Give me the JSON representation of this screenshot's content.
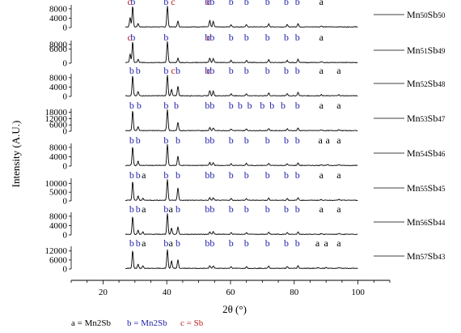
{
  "chart_data": {
    "type": "line",
    "xlabel": "2θ (°)",
    "ylabel": "Intensity (A.U.)",
    "xlim": [
      10,
      110
    ],
    "x_ticks": [
      "20",
      "40",
      "60",
      "80",
      "100"
    ],
    "grid": false,
    "legend": [
      {
        "symbol": "a",
        "text": "a = Mn2Sb",
        "color": "#000000"
      },
      {
        "symbol": "b",
        "text": "b = Mn2Sb",
        "color": "#1f1fa8"
      },
      {
        "symbol": "c",
        "text": "c = Sb",
        "color": "#c0201f"
      }
    ],
    "series": [
      {
        "name": "Mn50Sb50",
        "y_ticks": [
          "8000",
          "4000",
          "0"
        ],
        "ymax": 9000,
        "peaks": [
          [
            28.5,
            0.45
          ],
          [
            29.3,
            1.0
          ],
          [
            31.0,
            0.16
          ],
          [
            40.2,
            1.0
          ],
          [
            43.5,
            0.28
          ],
          [
            53.5,
            0.3
          ],
          [
            54.6,
            0.26
          ],
          [
            60.2,
            0.1
          ],
          [
            65.0,
            0.1
          ],
          [
            72.0,
            0.14
          ],
          [
            77.8,
            0.1
          ],
          [
            81.2,
            0.16
          ],
          [
            88.5,
            0.05
          ]
        ],
        "labels": [
          {
            "x": 28.3,
            "t": "c"
          },
          {
            "x": 29.4,
            "t": "b"
          },
          {
            "x": 39.8,
            "t": "b"
          },
          {
            "x": 42.0,
            "t": "c"
          },
          {
            "x": 53.2,
            "t": "c"
          },
          {
            "x": 53.5,
            "t": "bb"
          },
          {
            "x": 60.2,
            "t": "b"
          },
          {
            "x": 65.0,
            "t": "b"
          },
          {
            "x": 71.6,
            "t": "b"
          },
          {
            "x": 77.5,
            "t": "b"
          },
          {
            "x": 81.0,
            "t": "b"
          },
          {
            "x": 88.5,
            "t": "a"
          }
        ]
      },
      {
        "name": "Mn51Sb49",
        "y_ticks": [
          "8000",
          "6000",
          "0"
        ],
        "ymax": 9000,
        "peaks": [
          [
            28.5,
            0.4
          ],
          [
            29.3,
            1.0
          ],
          [
            31.0,
            0.15
          ],
          [
            40.2,
            1.0
          ],
          [
            43.5,
            0.2
          ],
          [
            53.5,
            0.22
          ],
          [
            54.6,
            0.2
          ],
          [
            60.2,
            0.1
          ],
          [
            65.0,
            0.1
          ],
          [
            72.0,
            0.14
          ],
          [
            77.8,
            0.1
          ],
          [
            81.2,
            0.16
          ],
          [
            88.5,
            0.05
          ]
        ],
        "labels": [
          {
            "x": 28.3,
            "t": "c"
          },
          {
            "x": 29.4,
            "t": "b"
          },
          {
            "x": 39.8,
            "t": "b"
          },
          {
            "x": 53.2,
            "t": "c"
          },
          {
            "x": 53.5,
            "t": "bb"
          },
          {
            "x": 60.2,
            "t": "b"
          },
          {
            "x": 65.0,
            "t": "b"
          },
          {
            "x": 71.6,
            "t": "b"
          },
          {
            "x": 77.5,
            "t": "b"
          },
          {
            "x": 81.0,
            "t": "b"
          },
          {
            "x": 88.5,
            "t": "a"
          }
        ]
      },
      {
        "name": "Mn52Sb48",
        "y_ticks": [
          "8000",
          "4000",
          "0"
        ],
        "ymax": 9000,
        "peaks": [
          [
            29.3,
            0.95
          ],
          [
            31.0,
            0.2
          ],
          [
            40.2,
            1.0
          ],
          [
            41.5,
            0.3
          ],
          [
            43.5,
            0.45
          ],
          [
            53.5,
            0.25
          ],
          [
            54.6,
            0.22
          ],
          [
            60.2,
            0.1
          ],
          [
            65.0,
            0.1
          ],
          [
            72.0,
            0.14
          ],
          [
            77.8,
            0.1
          ],
          [
            81.2,
            0.16
          ],
          [
            88.5,
            0.05
          ],
          [
            94.0,
            0.05
          ]
        ],
        "labels": [
          {
            "x": 29.0,
            "t": "b"
          },
          {
            "x": 31.0,
            "t": "b"
          },
          {
            "x": 39.8,
            "t": "b"
          },
          {
            "x": 42.0,
            "t": "c"
          },
          {
            "x": 43.5,
            "t": "b"
          },
          {
            "x": 53.2,
            "t": "c"
          },
          {
            "x": 53.5,
            "t": "bb"
          },
          {
            "x": 60.2,
            "t": "b"
          },
          {
            "x": 65.0,
            "t": "b"
          },
          {
            "x": 71.6,
            "t": "b"
          },
          {
            "x": 77.5,
            "t": "b"
          },
          {
            "x": 81.0,
            "t": "b"
          },
          {
            "x": 88.5,
            "t": "a"
          },
          {
            "x": 94.0,
            "t": "a"
          }
        ]
      },
      {
        "name": "Mn53Sb47",
        "y_ticks": [
          "18000",
          "12000",
          "6000",
          "0"
        ],
        "ymax": 20000,
        "peaks": [
          [
            29.3,
            0.95
          ],
          [
            31.0,
            0.2
          ],
          [
            40.2,
            1.0
          ],
          [
            43.5,
            0.4
          ],
          [
            53.5,
            0.15
          ],
          [
            54.6,
            0.13
          ],
          [
            60.2,
            0.08
          ],
          [
            65.0,
            0.08
          ],
          [
            72.0,
            0.1
          ],
          [
            77.8,
            0.08
          ],
          [
            81.2,
            0.12
          ],
          [
            88.5,
            0.04
          ],
          [
            94.0,
            0.04
          ]
        ],
        "labels": [
          {
            "x": 29.0,
            "t": "b"
          },
          {
            "x": 31.3,
            "t": "b"
          },
          {
            "x": 39.8,
            "t": "b"
          },
          {
            "x": 43.0,
            "t": "b"
          },
          {
            "x": 53.5,
            "t": "bb"
          },
          {
            "x": 60.2,
            "t": "b"
          },
          {
            "x": 63.0,
            "t": "b"
          },
          {
            "x": 66.0,
            "t": "b"
          },
          {
            "x": 70.0,
            "t": "b"
          },
          {
            "x": 73.0,
            "t": "b"
          },
          {
            "x": 76.5,
            "t": "b"
          },
          {
            "x": 81.0,
            "t": "b"
          },
          {
            "x": 88.5,
            "t": "a"
          },
          {
            "x": 94.0,
            "t": "a"
          }
        ]
      },
      {
        "name": "Mn54Sb46",
        "y_ticks": [
          "8000",
          "4000",
          "0"
        ],
        "ymax": 9000,
        "peaks": [
          [
            29.3,
            0.9
          ],
          [
            31.0,
            0.2
          ],
          [
            40.2,
            1.0
          ],
          [
            43.5,
            0.45
          ],
          [
            53.5,
            0.15
          ],
          [
            54.6,
            0.13
          ],
          [
            60.2,
            0.08
          ],
          [
            65.0,
            0.1
          ],
          [
            72.0,
            0.1
          ],
          [
            77.8,
            0.08
          ],
          [
            81.2,
            0.12
          ],
          [
            88.5,
            0.04
          ],
          [
            90.5,
            0.04
          ],
          [
            94.0,
            0.04
          ]
        ],
        "labels": [
          {
            "x": 29.0,
            "t": "b"
          },
          {
            "x": 31.0,
            "t": "b"
          },
          {
            "x": 39.8,
            "t": "b"
          },
          {
            "x": 43.5,
            "t": "b"
          },
          {
            "x": 53.5,
            "t": "bb"
          },
          {
            "x": 60.2,
            "t": "b"
          },
          {
            "x": 65.0,
            "t": "b"
          },
          {
            "x": 71.6,
            "t": "b"
          },
          {
            "x": 77.5,
            "t": "b"
          },
          {
            "x": 81.0,
            "t": "b"
          },
          {
            "x": 88.2,
            "t": "a"
          },
          {
            "x": 90.5,
            "t": "a"
          },
          {
            "x": 94.0,
            "t": "a"
          }
        ]
      },
      {
        "name": "Mn55Sb45",
        "y_ticks": [
          "10000",
          "5000",
          "0"
        ],
        "ymax": 12000,
        "peaks": [
          [
            29.3,
            0.9
          ],
          [
            31.0,
            0.2
          ],
          [
            32.5,
            0.1
          ],
          [
            40.2,
            1.0
          ],
          [
            43.5,
            0.6
          ],
          [
            53.5,
            0.12
          ],
          [
            54.6,
            0.12
          ],
          [
            60.2,
            0.08
          ],
          [
            65.0,
            0.08
          ],
          [
            72.0,
            0.1
          ],
          [
            77.8,
            0.08
          ],
          [
            81.2,
            0.12
          ],
          [
            88.5,
            0.04
          ],
          [
            94.0,
            0.04
          ]
        ],
        "labels": [
          {
            "x": 29.0,
            "t": "b"
          },
          {
            "x": 31.0,
            "t": "b"
          },
          {
            "x": 32.8,
            "t": "a"
          },
          {
            "x": 39.8,
            "t": "b"
          },
          {
            "x": 43.5,
            "t": "b"
          },
          {
            "x": 53.5,
            "t": "bb"
          },
          {
            "x": 60.2,
            "t": "b"
          },
          {
            "x": 65.0,
            "t": "b"
          },
          {
            "x": 71.6,
            "t": "b"
          },
          {
            "x": 77.5,
            "t": "b"
          },
          {
            "x": 81.0,
            "t": "b"
          },
          {
            "x": 88.5,
            "t": "a"
          },
          {
            "x": 94.0,
            "t": "a"
          }
        ]
      },
      {
        "name": "Mn56Sb44",
        "y_ticks": [
          "8000",
          "4000",
          "0"
        ],
        "ymax": 9000,
        "peaks": [
          [
            29.3,
            0.85
          ],
          [
            31.0,
            0.2
          ],
          [
            32.5,
            0.12
          ],
          [
            40.2,
            1.0
          ],
          [
            41.5,
            0.3
          ],
          [
            43.5,
            0.35
          ],
          [
            53.5,
            0.12
          ],
          [
            54.6,
            0.12
          ],
          [
            60.2,
            0.08
          ],
          [
            65.0,
            0.08
          ],
          [
            72.0,
            0.1
          ],
          [
            77.8,
            0.08
          ],
          [
            81.2,
            0.12
          ],
          [
            88.5,
            0.04
          ],
          [
            94.0,
            0.04
          ]
        ],
        "labels": [
          {
            "x": 29.0,
            "t": "b"
          },
          {
            "x": 31.0,
            "t": "b"
          },
          {
            "x": 32.8,
            "t": "a"
          },
          {
            "x": 39.8,
            "t": "b"
          },
          {
            "x": 41.3,
            "t": "a"
          },
          {
            "x": 43.5,
            "t": "b"
          },
          {
            "x": 53.5,
            "t": "bb"
          },
          {
            "x": 60.2,
            "t": "b"
          },
          {
            "x": 65.0,
            "t": "b"
          },
          {
            "x": 71.6,
            "t": "b"
          },
          {
            "x": 77.5,
            "t": "b"
          },
          {
            "x": 81.0,
            "t": "b"
          },
          {
            "x": 88.5,
            "t": "a"
          },
          {
            "x": 94.0,
            "t": "a"
          }
        ]
      },
      {
        "name": "Mn57Sb43",
        "y_ticks": [
          "12000",
          "6000",
          "0"
        ],
        "ymax": 14000,
        "peaks": [
          [
            29.3,
            0.85
          ],
          [
            31.0,
            0.2
          ],
          [
            32.5,
            0.12
          ],
          [
            40.2,
            0.9
          ],
          [
            41.5,
            0.35
          ],
          [
            43.5,
            0.4
          ],
          [
            53.5,
            0.12
          ],
          [
            54.6,
            0.12
          ],
          [
            60.2,
            0.08
          ],
          [
            65.0,
            0.08
          ],
          [
            72.0,
            0.1
          ],
          [
            77.8,
            0.08
          ],
          [
            81.2,
            0.12
          ],
          [
            87.5,
            0.04
          ],
          [
            90.0,
            0.04
          ],
          [
            94.0,
            0.04
          ]
        ],
        "labels": [
          {
            "x": 29.0,
            "t": "b"
          },
          {
            "x": 31.0,
            "t": "b"
          },
          {
            "x": 32.8,
            "t": "a"
          },
          {
            "x": 39.8,
            "t": "b"
          },
          {
            "x": 41.3,
            "t": "a"
          },
          {
            "x": 43.5,
            "t": "b"
          },
          {
            "x": 53.5,
            "t": "bb"
          },
          {
            "x": 60.2,
            "t": "b"
          },
          {
            "x": 65.0,
            "t": "b"
          },
          {
            "x": 71.6,
            "t": "b"
          },
          {
            "x": 77.5,
            "t": "b"
          },
          {
            "x": 81.0,
            "t": "b"
          },
          {
            "x": 87.3,
            "t": "a"
          },
          {
            "x": 90.0,
            "t": "a"
          },
          {
            "x": 94.0,
            "t": "a"
          }
        ]
      }
    ]
  },
  "colors": {
    "a": "#000000",
    "b": "#1f1fa8",
    "c": "#c0201f"
  }
}
